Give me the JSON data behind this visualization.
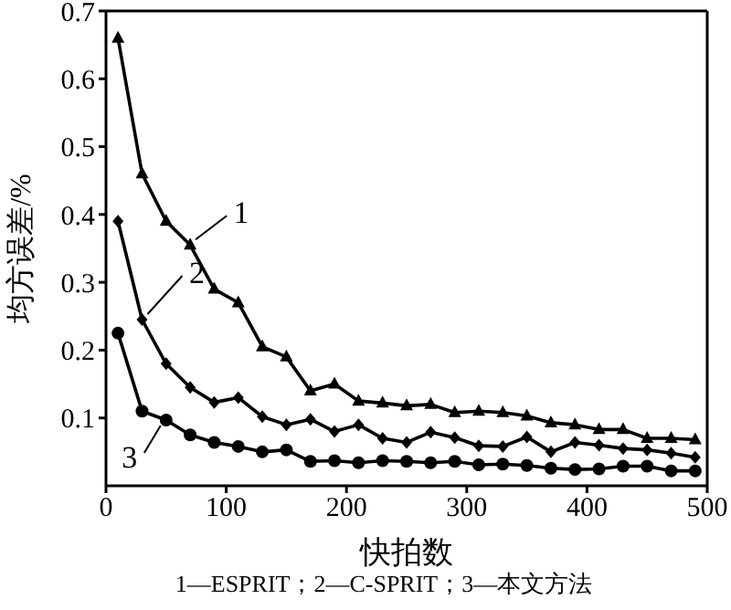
{
  "chart_data": {
    "type": "line",
    "xlabel": "快拍数",
    "ylabel": "均方误差/%",
    "x": [
      10,
      30,
      50,
      70,
      90,
      110,
      130,
      150,
      170,
      190,
      210,
      230,
      250,
      270,
      290,
      310,
      330,
      350,
      370,
      390,
      410,
      430,
      450,
      470,
      490
    ],
    "series": [
      {
        "color": "#000000",
        "marker": "triangle",
        "values": [
          0.66,
          0.46,
          0.39,
          0.355,
          0.29,
          0.27,
          0.205,
          0.19,
          0.14,
          0.15,
          0.125,
          0.122,
          0.118,
          0.12,
          0.108,
          0.11,
          0.108,
          0.103,
          0.093,
          0.09,
          0.083,
          0.083,
          0.07,
          0.07,
          0.068
        ]
      },
      {
        "color": "#000000",
        "marker": "diamond",
        "values": [
          0.39,
          0.245,
          0.18,
          0.145,
          0.123,
          0.13,
          0.102,
          0.09,
          0.098,
          0.08,
          0.09,
          0.07,
          0.064,
          0.079,
          0.071,
          0.059,
          0.058,
          0.072,
          0.05,
          0.064,
          0.06,
          0.055,
          0.053,
          0.048,
          0.042
        ]
      },
      {
        "color": "#000000",
        "marker": "circle",
        "values": [
          0.225,
          0.11,
          0.097,
          0.075,
          0.064,
          0.058,
          0.05,
          0.053,
          0.036,
          0.037,
          0.034,
          0.037,
          0.036,
          0.034,
          0.036,
          0.031,
          0.032,
          0.03,
          0.026,
          0.024,
          0.025,
          0.029,
          0.029,
          0.022,
          0.022
        ]
      }
    ],
    "xlim": [
      0,
      500
    ],
    "xticks": [
      0,
      100,
      200,
      300,
      400,
      500
    ],
    "ylim": [
      0,
      0.7
    ],
    "yticks": [
      0.1,
      0.2,
      0.3,
      0.4,
      0.5,
      0.6,
      0.7
    ],
    "grid": false,
    "line_style": "solid",
    "annotations": [
      {
        "text": "1",
        "x": 70,
        "y": 0.355
      },
      {
        "text": "2",
        "x": 30,
        "y": 0.245
      },
      {
        "text": "3",
        "x": 50,
        "y": 0.097
      },
      "1—ESPRIT；2—C-SPRIT；3—本文方法"
    ]
  }
}
